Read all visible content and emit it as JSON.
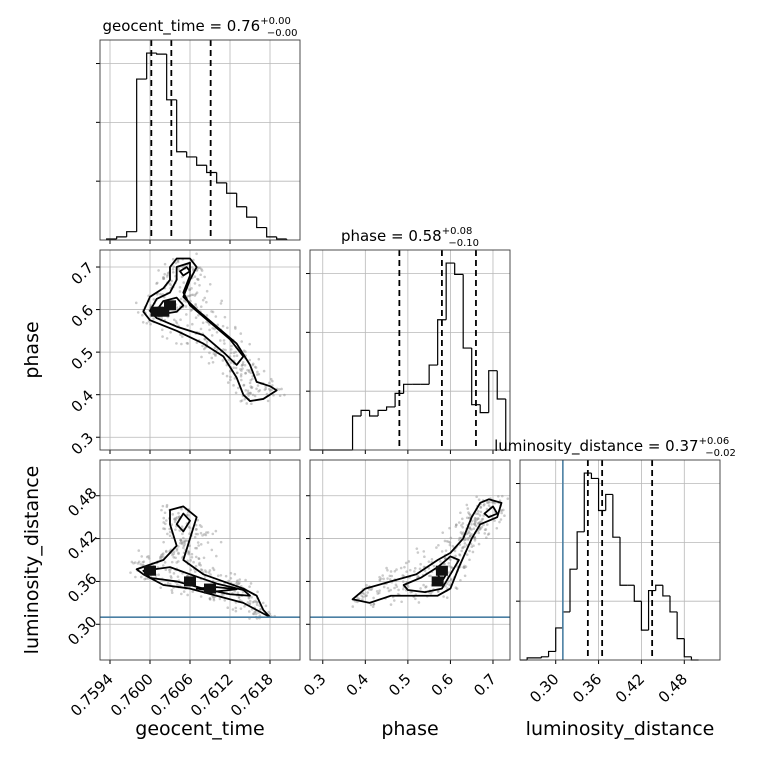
{
  "chart_data": {
    "type": "corner",
    "parameters": [
      "geocent_time",
      "phase",
      "luminosity_distance"
    ],
    "truth": {
      "luminosity_distance": 0.31
    },
    "titles": [
      {
        "param": "geocent_time",
        "text": "geocent_time = 0.76",
        "plus": "+0.00",
        "minus": "−0.00"
      },
      {
        "param": "phase",
        "text": "phase = 0.58",
        "plus": "+0.08",
        "minus": "−0.10"
      },
      {
        "param": "luminosity_distance",
        "text": "luminosity_distance = 0.37",
        "plus": "+0.06",
        "minus": "−0.02"
      }
    ],
    "axes": {
      "geocent_time": {
        "range": [
          0.75925,
          0.76225
        ],
        "ticks": [
          0.7594,
          0.76,
          0.7606,
          0.7612,
          0.7618
        ],
        "tick_labels": [
          "0.7594",
          "0.7600",
          "0.7606",
          "0.7612",
          "0.7618"
        ],
        "label": "geocent_time"
      },
      "phase": {
        "range": [
          0.27,
          0.74
        ],
        "ticks": [
          0.3,
          0.4,
          0.5,
          0.6,
          0.7
        ],
        "tick_labels": [
          "0.3",
          "0.4",
          "0.5",
          "0.6",
          "0.7"
        ],
        "label": "phase"
      },
      "luminosity_distance": {
        "range": [
          0.25,
          0.53
        ],
        "ticks": [
          0.3,
          0.36,
          0.42,
          0.48
        ],
        "tick_labels": [
          "0.30",
          "0.36",
          "0.42",
          "0.48"
        ],
        "label": "luminosity_distance"
      }
    },
    "histograms": {
      "geocent_time": {
        "quantiles": [
          0.76002,
          0.76032,
          0.76091
        ],
        "edges": [
          0.75935,
          0.7595,
          0.75965,
          0.7598,
          0.75995,
          0.7601,
          0.76025,
          0.7604,
          0.76055,
          0.7607,
          0.76085,
          0.761,
          0.76115,
          0.7613,
          0.76145,
          0.7616,
          0.76175,
          0.7619,
          0.76205
        ],
        "values": [
          1,
          3,
          8,
          155,
          180,
          179,
          135,
          85,
          80,
          72,
          65,
          55,
          45,
          32,
          22,
          12,
          3,
          1
        ]
      },
      "phase": {
        "quantiles": [
          0.48,
          0.58,
          0.66
        ],
        "edges": [
          0.27,
          0.37,
          0.39,
          0.41,
          0.43,
          0.45,
          0.47,
          0.49,
          0.51,
          0.53,
          0.55,
          0.57,
          0.59,
          0.61,
          0.63,
          0.65,
          0.67,
          0.69,
          0.71,
          0.73
        ],
        "values": [
          0,
          30,
          35,
          30,
          35,
          38,
          50,
          58,
          58,
          58,
          75,
          115,
          165,
          155,
          90,
          40,
          33,
          70,
          45
        ]
      },
      "luminosity_distance": {
        "quantiles": [
          0.345,
          0.365,
          0.435
        ],
        "edges": [
          0.25,
          0.26,
          0.28,
          0.29,
          0.3,
          0.31,
          0.32,
          0.33,
          0.34,
          0.35,
          0.36,
          0.37,
          0.38,
          0.39,
          0.4,
          0.41,
          0.42,
          0.43,
          0.44,
          0.45,
          0.46,
          0.47,
          0.48,
          0.49,
          0.5
        ],
        "values": [
          0,
          2,
          3,
          8,
          30,
          45,
          85,
          120,
          175,
          170,
          140,
          155,
          115,
          70,
          70,
          55,
          28,
          65,
          70,
          60,
          45,
          20,
          3,
          0
        ]
      }
    },
    "density_2d": [
      {
        "x": "geocent_time",
        "y": "phase",
        "contour_levels": [
          [
            [
              0.7599,
              0.595
            ],
            [
              0.76,
              0.63
            ],
            [
              0.7602,
              0.65
            ],
            [
              0.7603,
              0.67
            ],
            [
              0.7603,
              0.7
            ],
            [
              0.7604,
              0.72
            ],
            [
              0.7606,
              0.72
            ],
            [
              0.7607,
              0.7
            ],
            [
              0.7606,
              0.67
            ],
            [
              0.7605,
              0.63
            ],
            [
              0.7607,
              0.6
            ],
            [
              0.761,
              0.56
            ],
            [
              0.7613,
              0.52
            ],
            [
              0.7615,
              0.47
            ],
            [
              0.7616,
              0.43
            ],
            [
              0.7618,
              0.42
            ],
            [
              0.7619,
              0.41
            ],
            [
              0.7617,
              0.39
            ],
            [
              0.7615,
              0.385
            ],
            [
              0.7614,
              0.4
            ],
            [
              0.7613,
              0.44
            ],
            [
              0.7611,
              0.49
            ],
            [
              0.7608,
              0.52
            ],
            [
              0.7604,
              0.55
            ],
            [
              0.76,
              0.575
            ]
          ],
          [
            [
              0.76,
              0.597
            ],
            [
              0.7601,
              0.625
            ],
            [
              0.7603,
              0.64
            ],
            [
              0.7604,
              0.67
            ],
            [
              0.7604,
              0.7
            ],
            [
              0.7606,
              0.71
            ],
            [
              0.7606,
              0.68
            ],
            [
              0.7605,
              0.64
            ],
            [
              0.7606,
              0.61
            ],
            [
              0.7609,
              0.57
            ],
            [
              0.7612,
              0.53
            ],
            [
              0.7614,
              0.49
            ],
            [
              0.7613,
              0.47
            ],
            [
              0.7611,
              0.5
            ],
            [
              0.7608,
              0.54
            ],
            [
              0.7604,
              0.56
            ],
            [
              0.7601,
              0.58
            ]
          ],
          [
            [
              0.7601,
              0.598
            ],
            [
              0.7602,
              0.62
            ],
            [
              0.7604,
              0.628
            ],
            [
              0.7605,
              0.61
            ],
            [
              0.7604,
              0.595
            ],
            [
              0.7602,
              0.59
            ]
          ],
          [
            [
              0.76045,
              0.69
            ],
            [
              0.76055,
              0.7
            ],
            [
              0.7606,
              0.69
            ],
            [
              0.7605,
              0.68
            ]
          ]
        ],
        "peak_cells": [
          [
            0.7601,
            0.595
          ],
          [
            0.7602,
            0.595
          ],
          [
            0.7603,
            0.61
          ]
        ]
      },
      {
        "x": "geocent_time",
        "y": "luminosity_distance",
        "contour_levels": [
          [
            [
              0.7598,
              0.377
            ],
            [
              0.7602,
              0.39
            ],
            [
              0.7604,
              0.41
            ],
            [
              0.7603,
              0.44
            ],
            [
              0.7603,
              0.46
            ],
            [
              0.7605,
              0.465
            ],
            [
              0.7607,
              0.45
            ],
            [
              0.7606,
              0.42
            ],
            [
              0.7605,
              0.39
            ],
            [
              0.7608,
              0.37
            ],
            [
              0.7611,
              0.36
            ],
            [
              0.7614,
              0.35
            ],
            [
              0.7616,
              0.34
            ],
            [
              0.7617,
              0.32
            ],
            [
              0.7618,
              0.31
            ],
            [
              0.7616,
              0.32
            ],
            [
              0.7614,
              0.33
            ],
            [
              0.761,
              0.34
            ],
            [
              0.7606,
              0.35
            ],
            [
              0.7602,
              0.355
            ],
            [
              0.7599,
              0.37
            ]
          ],
          [
            [
              0.7599,
              0.375
            ],
            [
              0.7603,
              0.38
            ],
            [
              0.7606,
              0.37
            ],
            [
              0.761,
              0.357
            ],
            [
              0.7614,
              0.348
            ],
            [
              0.7615,
              0.34
            ],
            [
              0.7612,
              0.342
            ],
            [
              0.7608,
              0.35
            ],
            [
              0.7604,
              0.36
            ],
            [
              0.76,
              0.365
            ]
          ],
          [
            [
              0.7604,
              0.44
            ],
            [
              0.7605,
              0.455
            ],
            [
              0.7606,
              0.445
            ],
            [
              0.7605,
              0.43
            ]
          ],
          [
            [
              0.761,
              0.352
            ],
            [
              0.7613,
              0.349
            ],
            [
              0.761,
              0.346
            ],
            [
              0.7607,
              0.35
            ]
          ]
        ],
        "peak_cells": [
          [
            0.76,
            0.375
          ],
          [
            0.7606,
            0.36
          ],
          [
            0.7609,
            0.35
          ]
        ]
      },
      {
        "x": "phase",
        "y": "luminosity_distance",
        "contour_levels": [
          [
            [
              0.37,
              0.335
            ],
            [
              0.4,
              0.35
            ],
            [
              0.46,
              0.36
            ],
            [
              0.52,
              0.37
            ],
            [
              0.57,
              0.39
            ],
            [
              0.6,
              0.4
            ],
            [
              0.63,
              0.42
            ],
            [
              0.65,
              0.45
            ],
            [
              0.67,
              0.47
            ],
            [
              0.69,
              0.475
            ],
            [
              0.72,
              0.47
            ],
            [
              0.71,
              0.45
            ],
            [
              0.67,
              0.44
            ],
            [
              0.65,
              0.42
            ],
            [
              0.62,
              0.38
            ],
            [
              0.6,
              0.35
            ],
            [
              0.57,
              0.34
            ],
            [
              0.52,
              0.34
            ],
            [
              0.46,
              0.34
            ],
            [
              0.41,
              0.33
            ]
          ],
          [
            [
              0.49,
              0.355
            ],
            [
              0.53,
              0.365
            ],
            [
              0.57,
              0.38
            ],
            [
              0.6,
              0.395
            ],
            [
              0.62,
              0.39
            ],
            [
              0.6,
              0.37
            ],
            [
              0.58,
              0.35
            ],
            [
              0.54,
              0.345
            ],
            [
              0.5,
              0.348
            ]
          ],
          [
            [
              0.68,
              0.455
            ],
            [
              0.7,
              0.465
            ],
            [
              0.71,
              0.455
            ],
            [
              0.69,
              0.45
            ]
          ],
          [
            [
              0.57,
              0.37
            ],
            [
              0.58,
              0.38
            ],
            [
              0.59,
              0.37
            ],
            [
              0.58,
              0.36
            ]
          ]
        ],
        "peak_cells": [
          [
            0.57,
            0.36
          ],
          [
            0.58,
            0.375
          ]
        ]
      }
    ]
  }
}
